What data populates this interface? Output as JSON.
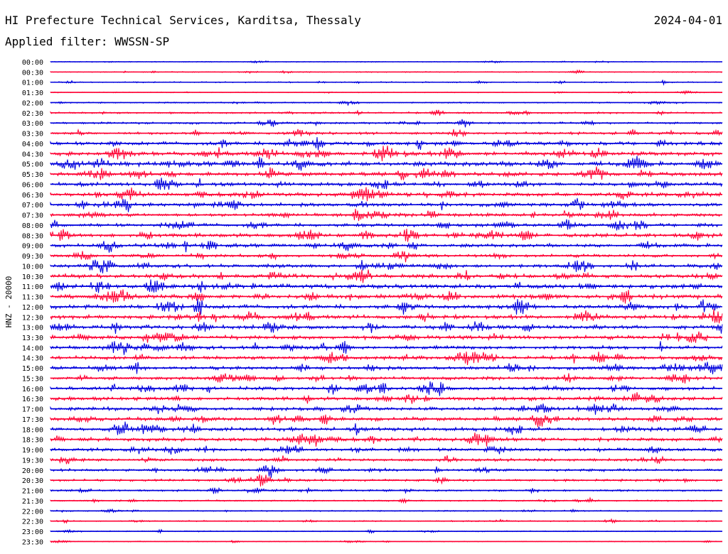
{
  "header": {
    "title": "HI Prefecture Technical Services, Karditsa, Thessaly",
    "date": "2024-04-01",
    "filter_text": "Applied filter: WWSSN-SP"
  },
  "chart_data": {
    "type": "line",
    "title": "",
    "ylabel": "HNZ - 20000",
    "xlabel": "",
    "grid": false,
    "legend": "none",
    "colors": [
      "#0000dd",
      "#ff0033"
    ],
    "rows": [
      {
        "time": "00:00",
        "amplitude": 0.1
      },
      {
        "time": "00:30",
        "amplitude": 0.12
      },
      {
        "time": "01:00",
        "amplitude": 0.14
      },
      {
        "time": "01:30",
        "amplitude": 0.1
      },
      {
        "time": "02:00",
        "amplitude": 0.15
      },
      {
        "time": "02:30",
        "amplitude": 0.2
      },
      {
        "time": "03:00",
        "amplitude": 0.24
      },
      {
        "time": "03:30",
        "amplitude": 0.3
      },
      {
        "time": "04:00",
        "amplitude": 0.42
      },
      {
        "time": "04:30",
        "amplitude": 0.48
      },
      {
        "time": "05:00",
        "amplitude": 0.52
      },
      {
        "time": "05:30",
        "amplitude": 0.46
      },
      {
        "time": "06:00",
        "amplitude": 0.42
      },
      {
        "time": "06:30",
        "amplitude": 0.44
      },
      {
        "time": "07:00",
        "amplitude": 0.42
      },
      {
        "time": "07:30",
        "amplitude": 0.4
      },
      {
        "time": "08:00",
        "amplitude": 0.4
      },
      {
        "time": "08:30",
        "amplitude": 0.44
      },
      {
        "time": "09:00",
        "amplitude": 0.4
      },
      {
        "time": "09:30",
        "amplitude": 0.36
      },
      {
        "time": "10:00",
        "amplitude": 0.42
      },
      {
        "time": "10:30",
        "amplitude": 0.46
      },
      {
        "time": "11:00",
        "amplitude": 0.48
      },
      {
        "time": "11:30",
        "amplitude": 0.5
      },
      {
        "time": "12:00",
        "amplitude": 0.48
      },
      {
        "time": "12:30",
        "amplitude": 0.46
      },
      {
        "time": "13:00",
        "amplitude": 0.44
      },
      {
        "time": "13:30",
        "amplitude": 0.44
      },
      {
        "time": "14:00",
        "amplitude": 0.42
      },
      {
        "time": "14:30",
        "amplitude": 0.42
      },
      {
        "time": "15:00",
        "amplitude": 0.4
      },
      {
        "time": "15:30",
        "amplitude": 0.38
      },
      {
        "time": "16:00",
        "amplitude": 0.42
      },
      {
        "time": "16:30",
        "amplitude": 0.4
      },
      {
        "time": "17:00",
        "amplitude": 0.42
      },
      {
        "time": "17:30",
        "amplitude": 0.42
      },
      {
        "time": "18:00",
        "amplitude": 0.44
      },
      {
        "time": "18:30",
        "amplitude": 0.42
      },
      {
        "time": "19:00",
        "amplitude": 0.36
      },
      {
        "time": "19:30",
        "amplitude": 0.34
      },
      {
        "time": "20:00",
        "amplitude": 0.3
      },
      {
        "time": "20:30",
        "amplitude": 0.26
      },
      {
        "time": "21:00",
        "amplitude": 0.22
      },
      {
        "time": "21:30",
        "amplitude": 0.18
      },
      {
        "time": "22:00",
        "amplitude": 0.14
      },
      {
        "time": "22:30",
        "amplitude": 0.14
      },
      {
        "time": "23:00",
        "amplitude": 0.12
      },
      {
        "time": "23:30",
        "amplitude": 0.1
      }
    ]
  }
}
